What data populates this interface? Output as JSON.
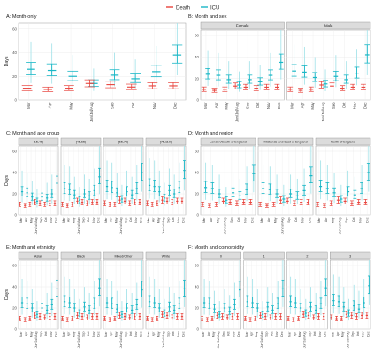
{
  "legend": {
    "items": [
      {
        "label": "Death",
        "color": "#e8423b"
      },
      {
        "label": "ICU",
        "color": "#1ab7c6"
      }
    ]
  },
  "colors": {
    "death": "#e8423b",
    "icu": "#1ab7c6",
    "icu_light": "#a8e4ea",
    "strip_bg": "#dcdcdc",
    "grid": "#ececec"
  },
  "chart_data": [
    {
      "id": "A",
      "title": "A: Month-only",
      "type": "scatter",
      "ylabel": "Days",
      "ylim": [
        0,
        65
      ],
      "yticks": [
        0,
        20,
        40,
        60
      ],
      "months": [
        "Mar",
        "Apr",
        "May",
        "Jun/Jul/Aug",
        "Sep",
        "Oct",
        "Nov",
        "Dec"
      ],
      "facets": [
        {
          "label": "",
          "death": [
            10,
            9,
            10,
            14,
            13,
            11,
            12,
            12
          ],
          "icu": [
            26,
            25,
            20,
            14,
            21,
            18,
            24,
            38
          ]
        }
      ]
    },
    {
      "id": "B",
      "title": "B: Month and sex",
      "type": "scatter",
      "ylabel": "",
      "ylim": [
        0,
        65
      ],
      "yticks": [
        0,
        20,
        40,
        60
      ],
      "months": [
        "Mar",
        "Apr",
        "May",
        "Jun/Jul/Aug",
        "Sep",
        "Oct",
        "Nov",
        "Dec"
      ],
      "facets": [
        {
          "label": "Female",
          "death": [
            10,
            9,
            10,
            13,
            12,
            11,
            12,
            12
          ],
          "icu": [
            24,
            23,
            19,
            14,
            19,
            17,
            23,
            35
          ]
        },
        {
          "label": "Male",
          "death": [
            10,
            9,
            10,
            14,
            13,
            11,
            12,
            12
          ],
          "icu": [
            27,
            26,
            21,
            15,
            22,
            19,
            25,
            42
          ]
        }
      ]
    },
    {
      "id": "C",
      "title": "C: Month and age group",
      "type": "scatter",
      "ylabel": "Days",
      "ylim": [
        0,
        65
      ],
      "yticks": [
        0,
        20,
        40,
        60
      ],
      "months": [
        "Mar",
        "Apr",
        "May",
        "Jun/Jul/Aug",
        "Sep",
        "Oct",
        "Nov",
        "Dec"
      ],
      "facets": [
        {
          "label": "[15,45)",
          "death": [
            10,
            9,
            10,
            12,
            11,
            10,
            11,
            11
          ],
          "icu": [
            22,
            21,
            17,
            13,
            17,
            16,
            20,
            30
          ]
        },
        {
          "label": "[45,65)",
          "death": [
            10,
            9,
            10,
            13,
            12,
            11,
            12,
            12
          ],
          "icu": [
            25,
            24,
            19,
            14,
            20,
            18,
            23,
            36
          ]
        },
        {
          "label": "[65,75)",
          "death": [
            11,
            10,
            10,
            14,
            13,
            11,
            12,
            12
          ],
          "icu": [
            27,
            26,
            21,
            15,
            22,
            19,
            25,
            40
          ]
        },
        {
          "label": "[75,110)",
          "death": [
            11,
            10,
            11,
            14,
            13,
            12,
            13,
            13
          ],
          "icu": [
            28,
            27,
            22,
            16,
            23,
            20,
            26,
            42
          ]
        }
      ]
    },
    {
      "id": "D",
      "title": "D: Month and region",
      "type": "scatter",
      "ylabel": "",
      "ylim": [
        0,
        65
      ],
      "yticks": [
        0,
        20,
        40,
        60
      ],
      "months": [
        "Mar",
        "Apr",
        "May",
        "Jun/Jul/Aug",
        "Sep",
        "Oct",
        "Nov",
        "Dec"
      ],
      "facets": [
        {
          "label": "London/South of England",
          "death": [
            10,
            9,
            10,
            13,
            12,
            11,
            12,
            12
          ],
          "icu": [
            26,
            25,
            20,
            14,
            21,
            18,
            24,
            39
          ]
        },
        {
          "label": "Midlands and East of England",
          "death": [
            10,
            9,
            10,
            14,
            13,
            11,
            12,
            12
          ],
          "icu": [
            25,
            24,
            20,
            15,
            20,
            18,
            23,
            37
          ]
        },
        {
          "label": "North of England",
          "death": [
            10,
            9,
            11,
            14,
            13,
            11,
            12,
            12
          ],
          "icu": [
            27,
            25,
            21,
            15,
            22,
            19,
            25,
            40
          ]
        }
      ]
    },
    {
      "id": "E",
      "title": "E: Month and ethnicity",
      "type": "scatter",
      "ylabel": "Days",
      "ylim": [
        0,
        65
      ],
      "yticks": [
        0,
        20,
        40,
        60
      ],
      "months": [
        "Mar",
        "Apr",
        "May",
        "Jun/Jul/Aug",
        "Sep",
        "Oct",
        "Nov",
        "Dec"
      ],
      "facets": [
        {
          "label": "Asian",
          "death": [
            10,
            9,
            10,
            13,
            12,
            11,
            12,
            12
          ],
          "icu": [
            25,
            24,
            20,
            14,
            20,
            18,
            23,
            38
          ]
        },
        {
          "label": "Black",
          "death": [
            10,
            9,
            10,
            13,
            12,
            11,
            12,
            12
          ],
          "icu": [
            26,
            25,
            20,
            15,
            21,
            18,
            24,
            39
          ]
        },
        {
          "label": "Mixed/Other",
          "death": [
            10,
            9,
            10,
            13,
            12,
            11,
            12,
            12
          ],
          "icu": [
            25,
            24,
            19,
            14,
            20,
            18,
            23,
            37
          ]
        },
        {
          "label": "White",
          "death": [
            10,
            9,
            10,
            14,
            13,
            11,
            12,
            12
          ],
          "icu": [
            26,
            25,
            20,
            15,
            21,
            18,
            24,
            38
          ]
        }
      ]
    },
    {
      "id": "F",
      "title": "F: Month and comorbidity",
      "type": "scatter",
      "ylabel": "",
      "ylim": [
        0,
        65
      ],
      "yticks": [
        0,
        20,
        40,
        60
      ],
      "months": [
        "Mar",
        "Apr",
        "May",
        "Jun/Jul/Aug",
        "Sep",
        "Oct",
        "Nov",
        "Dec"
      ],
      "facets": [
        {
          "label": "0",
          "death": [
            10,
            9,
            10,
            13,
            12,
            11,
            12,
            12
          ],
          "icu": [
            25,
            24,
            19,
            14,
            20,
            17,
            23,
            37
          ]
        },
        {
          "label": "1",
          "death": [
            10,
            9,
            10,
            13,
            12,
            11,
            12,
            12
          ],
          "icu": [
            26,
            25,
            20,
            14,
            21,
            18,
            24,
            38
          ]
        },
        {
          "label": "2",
          "death": [
            10,
            9,
            10,
            14,
            13,
            11,
            12,
            12
          ],
          "icu": [
            26,
            25,
            20,
            15,
            21,
            18,
            24,
            39
          ]
        },
        {
          "label": "3",
          "death": [
            11,
            10,
            10,
            14,
            13,
            12,
            13,
            13
          ],
          "icu": [
            27,
            26,
            21,
            15,
            22,
            19,
            25,
            41
          ]
        }
      ]
    }
  ]
}
